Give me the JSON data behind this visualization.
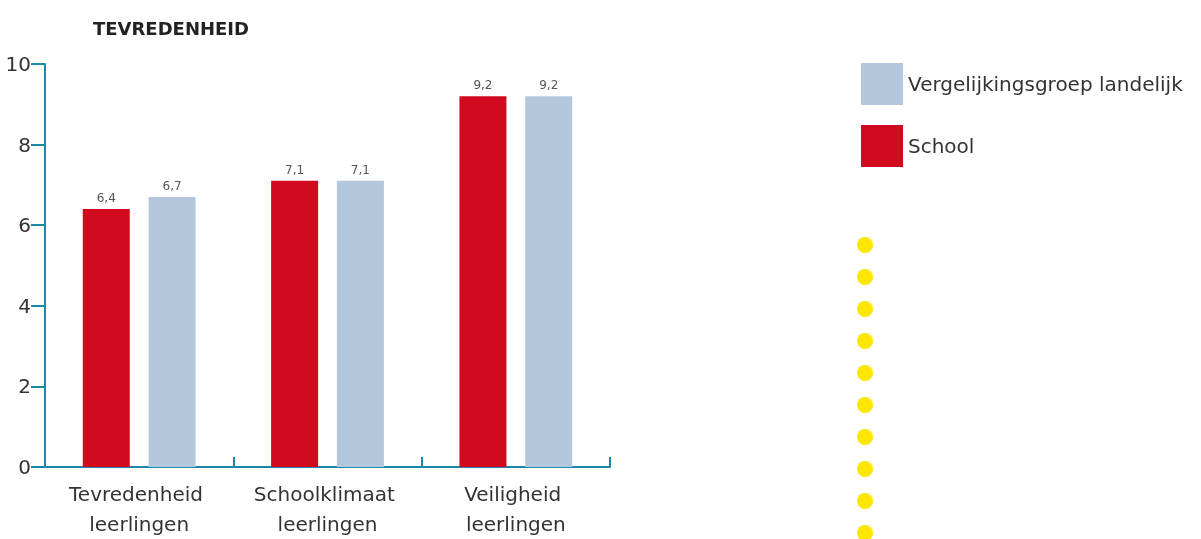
{
  "chart_data": {
    "type": "bar",
    "title": "TEVREDENHEID",
    "categories": [
      "Tevredenheid leerlingen",
      "Schoolklimaat leerlingen",
      "Veiligheid leerlingen"
    ],
    "series": [
      {
        "name": "School",
        "color": "#d20a20",
        "values": [
          6.4,
          7.1,
          9.2
        ],
        "value_labels": [
          "6,4",
          "7,1",
          "9,2"
        ]
      },
      {
        "name": "Vergelijkingsgroep landelijk",
        "color": "#b3c8dc",
        "values": [
          6.7,
          7.1,
          9.2
        ],
        "value_labels": [
          "6,7",
          "7,1",
          "9,2"
        ]
      }
    ],
    "ylim": [
      0,
      10
    ],
    "yticks": [
      0,
      2,
      4,
      6,
      8,
      10
    ],
    "legend": "top right"
  }
}
